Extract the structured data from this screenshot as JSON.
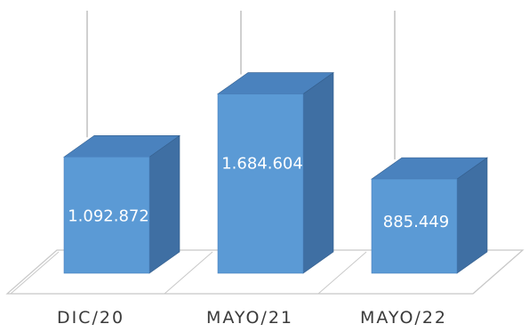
{
  "chart_data": {
    "type": "bar",
    "categories": [
      "DIC/20",
      "MAYO/21",
      "MAYO/22"
    ],
    "values": [
      1092872,
      1684604,
      885449
    ],
    "value_labels": [
      "1.092.872",
      "1.684.604",
      "885.449"
    ],
    "ylim": [
      0,
      2400000
    ],
    "grid": false,
    "legend": "none",
    "three_d": true,
    "colors": {
      "bar_front": "#5b9ad5",
      "bar_side": "#3f6fa3",
      "bar_top": "#4a82be",
      "floor_line": "#c8c8c8",
      "stem_line": "#b0b0b0"
    }
  }
}
